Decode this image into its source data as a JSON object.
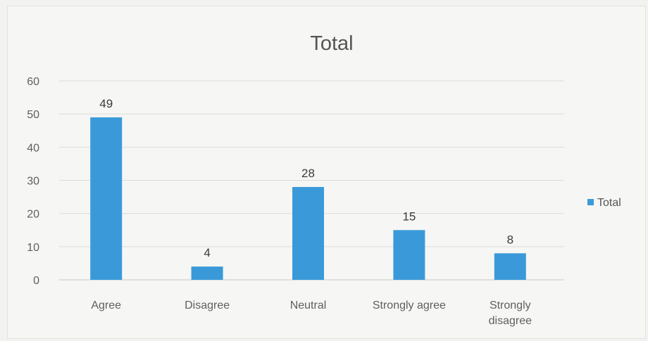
{
  "chart_data": {
    "type": "bar",
    "title": "Total",
    "categories": [
      "Agree",
      "Disagree",
      "Neutral",
      "Strongly agree",
      "Strongly disagree"
    ],
    "category_label_lines": [
      [
        "Agree"
      ],
      [
        "Disagree"
      ],
      [
        "Neutral"
      ],
      [
        "Strongly agree"
      ],
      [
        "Strongly",
        "disagree"
      ]
    ],
    "series": [
      {
        "name": "Total",
        "values": [
          49,
          4,
          28,
          15,
          8
        ],
        "color": "#3a9ad9"
      }
    ],
    "xlabel": "",
    "ylabel": "",
    "ylim": [
      0,
      60
    ],
    "yticks": [
      0,
      10,
      20,
      30,
      40,
      50,
      60
    ],
    "grid": true,
    "legend": "right",
    "data_labels": true
  }
}
